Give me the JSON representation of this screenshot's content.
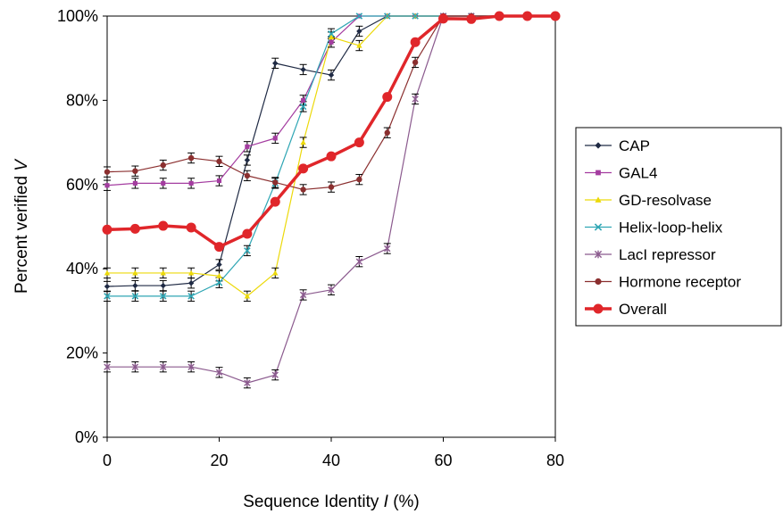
{
  "chart_data": {
    "type": "line",
    "xlabel": "Sequence Identity",
    "xlabel_var": "I",
    "xlabel_unit": "(%)",
    "ylabel": "Percent verified",
    "ylabel_var": "V",
    "xlim": [
      0,
      80
    ],
    "ylim": [
      0,
      100
    ],
    "xticks": [
      "0",
      "20",
      "40",
      "60",
      "80"
    ],
    "yticks": [
      "0%",
      "20%",
      "40%",
      "60%",
      "80%",
      "100%"
    ],
    "grid": false,
    "legend_position": "right",
    "series": [
      {
        "name": "CAP",
        "color": "#1f2a44",
        "marker": "diamond",
        "width": 1.2,
        "x": [
          0,
          5,
          10,
          15,
          20,
          25,
          30,
          35,
          40,
          45,
          50,
          55,
          60,
          65,
          70,
          75,
          80
        ],
        "y": [
          35.8,
          36,
          36,
          36.6,
          41,
          65.8,
          88.8,
          87.3,
          86,
          96.4,
          100,
          100,
          100,
          100,
          100,
          100,
          100
        ]
      },
      {
        "name": "GAL4",
        "color": "#a43ca0",
        "marker": "square",
        "width": 1.2,
        "x": [
          0,
          5,
          10,
          15,
          20,
          25,
          30,
          35,
          40,
          45,
          50,
          55,
          60,
          65,
          70,
          75,
          80
        ],
        "y": [
          59.8,
          60.3,
          60.3,
          60.3,
          60.9,
          69,
          71,
          80,
          93.8,
          100,
          100,
          100,
          100,
          100,
          100,
          100,
          100
        ]
      },
      {
        "name": "GD-resolvase",
        "color": "#ecd90a",
        "marker": "triangle",
        "width": 1.2,
        "x": [
          0,
          5,
          10,
          15,
          20,
          25,
          30,
          35,
          40,
          45,
          50,
          55,
          60,
          65,
          70,
          75,
          80
        ],
        "y": [
          39,
          39,
          39,
          39,
          38.3,
          33.5,
          39,
          70,
          95,
          93,
          100,
          100,
          100,
          100,
          100,
          100,
          100
        ]
      },
      {
        "name": "Helix-loop-helix",
        "color": "#2fa6b4",
        "marker": "x",
        "width": 1.2,
        "x": [
          0,
          5,
          10,
          15,
          20,
          25,
          30,
          35,
          40,
          45,
          50,
          55,
          60,
          65,
          70,
          75,
          80
        ],
        "y": [
          33.5,
          33.5,
          33.5,
          33.5,
          36.7,
          44.3,
          60.3,
          78.5,
          95.8,
          100,
          100,
          100,
          100,
          100,
          100,
          100,
          100
        ]
      },
      {
        "name": "LacI repressor",
        "color": "#8b5a8e",
        "marker": "star",
        "width": 1.2,
        "x": [
          0,
          5,
          10,
          15,
          20,
          25,
          30,
          35,
          40,
          45,
          50,
          55,
          60,
          65,
          70,
          75,
          80
        ],
        "y": [
          16.7,
          16.7,
          16.7,
          16.7,
          15.4,
          12.9,
          14.8,
          33.8,
          35,
          41.7,
          44.8,
          80.3,
          100,
          100,
          100,
          100,
          100
        ]
      },
      {
        "name": "Hormone receptor",
        "color": "#8b2f2f",
        "marker": "circle",
        "width": 1.2,
        "x": [
          0,
          5,
          10,
          15,
          20,
          25,
          30,
          35,
          40,
          45,
          50,
          55,
          60,
          65,
          70,
          75,
          80
        ],
        "y": [
          63,
          63.2,
          64.6,
          66.3,
          65.5,
          62.1,
          60.5,
          58.8,
          59.4,
          61.2,
          72.3,
          89,
          100,
          100,
          100,
          100,
          100
        ]
      },
      {
        "name": "Overall",
        "color": "#e0262a",
        "marker": "circle",
        "width": 3.5,
        "x": [
          0,
          5,
          10,
          15,
          20,
          25,
          30,
          35,
          40,
          45,
          50,
          55,
          60,
          65,
          70,
          75,
          80
        ],
        "y": [
          49.3,
          49.5,
          50.2,
          49.8,
          45.2,
          48.3,
          55.9,
          63.8,
          66.7,
          70,
          80.8,
          93.8,
          99.4,
          99.3,
          100,
          100,
          100
        ]
      }
    ]
  }
}
